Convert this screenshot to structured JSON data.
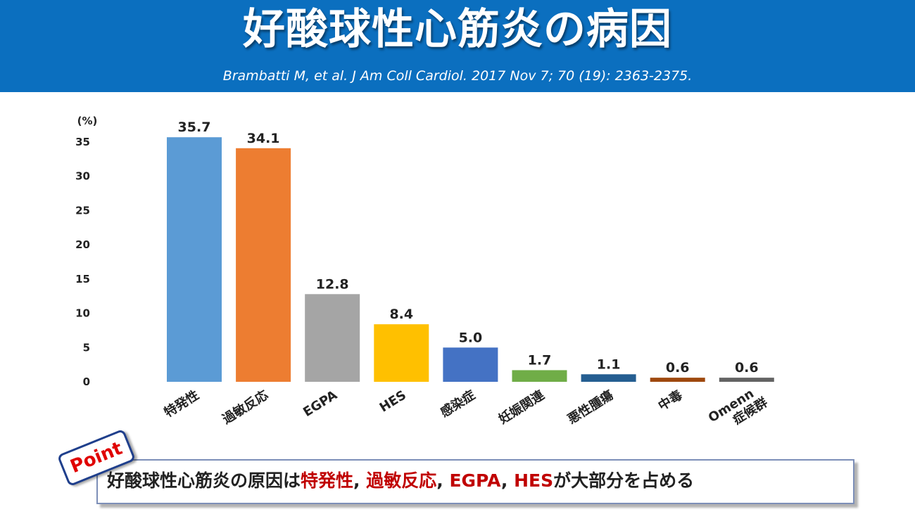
{
  "header": {
    "title": "好酸球性心筋炎の病因",
    "citation": "Brambatti M, et al. J Am Coll Cardiol. 2017 Nov 7; 70 (19): 2363-2375."
  },
  "chart_data": {
    "type": "bar",
    "ylabel": "(%)",
    "ylim": [
      0,
      35
    ],
    "yticks": [
      0,
      5,
      10,
      15,
      20,
      25,
      30,
      35
    ],
    "grid": false,
    "categories": [
      [
        "特発性"
      ],
      [
        "過敏反応"
      ],
      [
        "EGPA"
      ],
      [
        "HES"
      ],
      [
        "感染症"
      ],
      [
        "妊娠関連"
      ],
      [
        "悪性腫瘍"
      ],
      [
        "中毒"
      ],
      [
        "Omenn",
        "症候群"
      ]
    ],
    "values": [
      35.7,
      34.1,
      12.8,
      8.4,
      5.0,
      1.7,
      1.1,
      0.6,
      0.6
    ],
    "data_labels": [
      "35.7",
      "34.1",
      "12.8",
      "8.4",
      "5.0",
      "1.7",
      "1.1",
      "0.6",
      "0.6"
    ],
    "colors": [
      "#5b9bd5",
      "#ed7d31",
      "#a5a5a5",
      "#ffc000",
      "#4472c4",
      "#70ad47",
      "#255e91",
      "#9e480e",
      "#636363"
    ]
  },
  "point": {
    "badge": "Point",
    "parts": [
      {
        "text": "好酸球性心筋炎の原因は",
        "highlight": false
      },
      {
        "text": "特発性",
        "highlight": true
      },
      {
        "text": ", ",
        "highlight": false
      },
      {
        "text": "過敏反応",
        "highlight": true
      },
      {
        "text": ", ",
        "highlight": false
      },
      {
        "text": "EGPA",
        "highlight": true
      },
      {
        "text": ", ",
        "highlight": false
      },
      {
        "text": "HES",
        "highlight": true
      },
      {
        "text": "が大部分を占める",
        "highlight": false
      }
    ]
  }
}
